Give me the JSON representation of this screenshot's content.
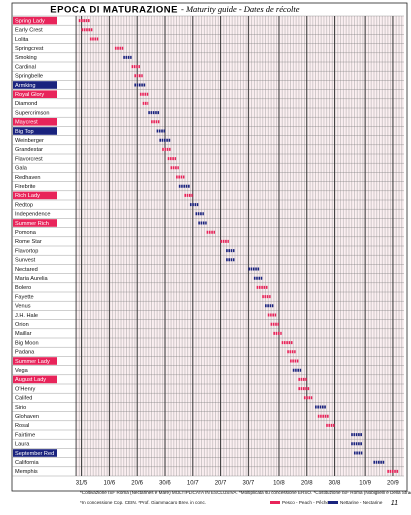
{
  "chart_data": {
    "type": "range-bar",
    "title": "EPOCA DI MATURAZIONE",
    "subtitle": "- Maturity guide - Dates de récolte",
    "xlim": [
      149,
      267
    ],
    "xticks": [
      {
        "value": 151,
        "label": "31/5"
      },
      {
        "value": 161,
        "label": "10/6"
      },
      {
        "value": 171,
        "label": "20/6"
      },
      {
        "value": 181,
        "label": "30/6"
      },
      {
        "value": 191,
        "label": "10/7"
      },
      {
        "value": 201,
        "label": "20/7"
      },
      {
        "value": 211,
        "label": "30/7"
      },
      {
        "value": 222,
        "label": "10/8"
      },
      {
        "value": 232,
        "label": "20/8"
      },
      {
        "value": 242,
        "label": "30/8"
      },
      {
        "value": 253,
        "label": "10/9"
      },
      {
        "value": 263,
        "label": "20/9"
      }
    ],
    "legend": [
      {
        "kind": "peach",
        "name": "Pesco - Peach - Pêcher",
        "color": "#e8245a"
      },
      {
        "kind": "nectarine",
        "name": "Nettarine - Nectarine",
        "color": "#1a237e"
      }
    ],
    "rows": [
      {
        "label": "Spring Lady",
        "style": "red",
        "kind": "peach",
        "start": 150,
        "end": 154
      },
      {
        "label": "Early Crest",
        "style": "plain",
        "kind": "peach",
        "start": 151,
        "end": 155
      },
      {
        "label": "Lolita",
        "style": "plain",
        "kind": "peach",
        "start": 154,
        "end": 157
      },
      {
        "label": "Springcrest",
        "style": "plain",
        "kind": "peach",
        "start": 163,
        "end": 166
      },
      {
        "label": "Smoking",
        "style": "plain",
        "kind": "nectarine",
        "start": 166,
        "end": 169
      },
      {
        "label": "Cardinal",
        "style": "plain",
        "kind": "peach",
        "start": 169,
        "end": 172
      },
      {
        "label": "Springbelle",
        "style": "plain",
        "kind": "peach",
        "start": 170,
        "end": 173
      },
      {
        "label": "Armking",
        "style": "blue",
        "kind": "nectarine",
        "start": 170,
        "end": 174
      },
      {
        "label": "Royal Glory",
        "style": "red",
        "kind": "peach",
        "start": 172,
        "end": 175
      },
      {
        "label": "Diamond",
        "style": "plain",
        "kind": "peach",
        "start": 173,
        "end": 175
      },
      {
        "label": "Supercrimson",
        "style": "plain",
        "kind": "nectarine",
        "start": 175,
        "end": 179
      },
      {
        "label": "Maycrest",
        "style": "red",
        "kind": "peach",
        "start": 176,
        "end": 179
      },
      {
        "label": "Big Top",
        "style": "blue",
        "kind": "nectarine",
        "start": 178,
        "end": 181
      },
      {
        "label": "Weinberger",
        "style": "plain",
        "kind": "nectarine",
        "start": 179,
        "end": 183
      },
      {
        "label": "Grandestar",
        "style": "plain",
        "kind": "peach",
        "start": 180,
        "end": 183
      },
      {
        "label": "Flavorcrest",
        "style": "plain",
        "kind": "peach",
        "start": 182,
        "end": 185
      },
      {
        "label": "Gala",
        "style": "plain",
        "kind": "peach",
        "start": 183,
        "end": 186
      },
      {
        "label": "Redhaven",
        "style": "plain",
        "kind": "peach",
        "start": 185,
        "end": 188
      },
      {
        "label": "Firebrite",
        "style": "plain",
        "kind": "nectarine",
        "start": 186,
        "end": 190
      },
      {
        "label": "Rich Lady",
        "style": "red",
        "kind": "peach",
        "start": 188,
        "end": 191
      },
      {
        "label": "Redtop",
        "style": "plain",
        "kind": "nectarine",
        "start": 190,
        "end": 193
      },
      {
        "label": "Independence",
        "style": "plain",
        "kind": "nectarine",
        "start": 192,
        "end": 195
      },
      {
        "label": "Summer Rich",
        "style": "red",
        "kind": "nectarine",
        "start": 193,
        "end": 196
      },
      {
        "label": "Pomona",
        "style": "plain",
        "kind": "peach",
        "start": 196,
        "end": 199
      },
      {
        "label": "Rome Star",
        "style": "plain",
        "kind": "peach",
        "start": 201,
        "end": 204
      },
      {
        "label": "Flavortop",
        "style": "plain",
        "kind": "nectarine",
        "start": 203,
        "end": 206
      },
      {
        "label": "Sunvest",
        "style": "plain",
        "kind": "nectarine",
        "start": 203,
        "end": 206
      },
      {
        "label": "Nectared",
        "style": "plain",
        "kind": "nectarine",
        "start": 211,
        "end": 215
      },
      {
        "label": "Maria Aurelia",
        "style": "plain",
        "kind": "nectarine",
        "start": 213,
        "end": 216
      },
      {
        "label": "Bolero",
        "style": "plain",
        "kind": "peach",
        "start": 214,
        "end": 218
      },
      {
        "label": "Fayette",
        "style": "plain",
        "kind": "peach",
        "start": 216,
        "end": 219
      },
      {
        "label": "Venus",
        "style": "plain",
        "kind": "nectarine",
        "start": 217,
        "end": 220
      },
      {
        "label": "J.H. Hale",
        "style": "plain",
        "kind": "peach",
        "start": 218,
        "end": 221
      },
      {
        "label": "Orion",
        "style": "plain",
        "kind": "peach",
        "start": 219,
        "end": 222
      },
      {
        "label": "Maillar",
        "style": "plain",
        "kind": "peach",
        "start": 220,
        "end": 223
      },
      {
        "label": "Big Moon",
        "style": "plain",
        "kind": "peach",
        "start": 223,
        "end": 227
      },
      {
        "label": "Padana",
        "style": "plain",
        "kind": "peach",
        "start": 225,
        "end": 228
      },
      {
        "label": "Summer Lady",
        "style": "red",
        "kind": "peach",
        "start": 226,
        "end": 229
      },
      {
        "label": "Vega",
        "style": "plain",
        "kind": "nectarine",
        "start": 227,
        "end": 230
      },
      {
        "label": "August Lady",
        "style": "red",
        "kind": "peach",
        "start": 229,
        "end": 232
      },
      {
        "label": "O'Henry",
        "style": "plain",
        "kind": "peach",
        "start": 229,
        "end": 233
      },
      {
        "label": "Califed",
        "style": "plain",
        "kind": "peach",
        "start": 231,
        "end": 234
      },
      {
        "label": "Sirio",
        "style": "plain",
        "kind": "nectarine",
        "start": 235,
        "end": 239
      },
      {
        "label": "Glohaven",
        "style": "plain",
        "kind": "peach",
        "start": 236,
        "end": 240
      },
      {
        "label": "Rosal",
        "style": "plain",
        "kind": "peach",
        "start": 239,
        "end": 242
      },
      {
        "label": "Fairtime",
        "style": "plain",
        "kind": "nectarine",
        "start": 248,
        "end": 252
      },
      {
        "label": "Laura",
        "style": "plain",
        "kind": "nectarine",
        "start": 248,
        "end": 252
      },
      {
        "label": "September Red",
        "style": "blue",
        "kind": "nectarine",
        "start": 249,
        "end": 252
      },
      {
        "label": "California",
        "style": "plain",
        "kind": "nectarine",
        "start": 256,
        "end": 260
      },
      {
        "label": "Memphis",
        "style": "plain",
        "kind": "peach",
        "start": 261,
        "end": 265
      }
    ],
    "footnote": "*Coltivazione ISF Roma (Nectarines e Mare) MOLTIPLICATA IN ESCLUSIVA. *Moltiplicata su concessione ERSO. *Costituzione ISF Roma (Nobiglielli e Della Strada)",
    "footnote2": "*In concessione Cop. CEIN. *Prof. Giammacaro Brev. in conc.",
    "page": "11"
  }
}
